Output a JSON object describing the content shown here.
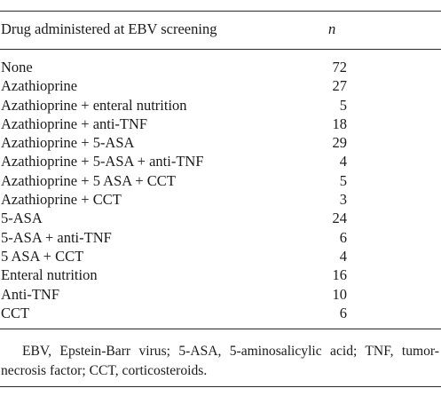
{
  "table": {
    "header": {
      "drug": "Drug administered at EBV screening",
      "n": "n"
    },
    "rows": [
      {
        "drug": "None",
        "n": "72"
      },
      {
        "drug": "Azathioprine",
        "n": "27"
      },
      {
        "drug": "Azathioprine + enteral nutrition",
        "n": "5"
      },
      {
        "drug": "Azathioprine + anti-TNF",
        "n": "18"
      },
      {
        "drug": "Azathioprine + 5-ASA",
        "n": "29"
      },
      {
        "drug": "Azathioprine + 5-ASA + anti-TNF",
        "n": "4"
      },
      {
        "drug": "Azathioprine + 5 ASA + CCT",
        "n": "5"
      },
      {
        "drug": "Azathioprine + CCT",
        "n": "3"
      },
      {
        "drug": "5-ASA",
        "n": "24"
      },
      {
        "drug": "5-ASA + anti-TNF",
        "n": "6"
      },
      {
        "drug": "5 ASA + CCT",
        "n": "4"
      },
      {
        "drug": "Enteral nutrition",
        "n": "16"
      },
      {
        "drug": "Anti-TNF",
        "n": "10"
      },
      {
        "drug": "CCT",
        "n": "6"
      }
    ]
  },
  "footnote": "EBV, Epstein-Barr virus; 5-ASA, 5-aminosalicylic acid; TNF, tumor-necrosis factor; CCT, corticosteroids."
}
